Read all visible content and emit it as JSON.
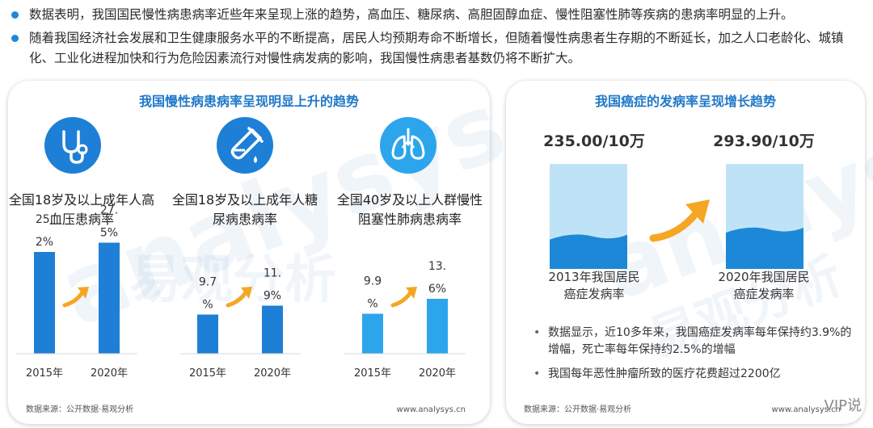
{
  "bullets": [
    "数据表明，我国国民慢性病患病率近些年来呈现上涨的趋势，高血压、糖尿病、高胆固醇血症、慢性阻塞性肺等疾病的患病率明显的上升。",
    "随着我国经济社会发展和卫生健康服务水平的不断提高，居民人均预期寿命不断增长，但随着慢性病患者生存期的不断延长，加之人口老龄化、城镇化、工业化进程加快和行为危险因素流行对慢性病发病的影响，我国慢性病患者基数仍将不断扩大。"
  ],
  "left_panel": {
    "title": "我国慢性病患病率呈现明显上升的趋势",
    "source": "数据来源：公开数据·易观分析",
    "site": "www.analysys.cn"
  },
  "right_panel": {
    "title": "我国癌症的发病率呈现增长趋势",
    "source": "数据来源：公开数据·易观分析",
    "site": "www.analysys.cn",
    "notes": [
      "数据显示，近10多年来，我国癌症发病率每年保持约3.9%的增幅，死亡率每年保持约2.5%的增幅",
      "我国每年恶性肿瘤所致的医疗花费超过2200亿"
    ]
  },
  "watermark": {
    "left_en": "analysys",
    "left_cn": "易观分析",
    "right_en": "analysys",
    "right_cn": "易观分析"
  },
  "colors": {
    "accent": "#1e78c8",
    "bar_dark": "#1e7fd6",
    "bar_light": "#2ca5ec",
    "arrow": "#f5a623",
    "tank_light": "#bfe3f6",
    "tank_fill": "#1e88d8"
  },
  "icons": [
    "stethoscope-icon",
    "test-tube-icon",
    "lungs-icon",
    "trend-arrow-icon"
  ],
  "vip": "VIP说",
  "chart_data": [
    {
      "type": "bar",
      "title": "全国18岁及以上成年人高血压患病率",
      "categories": [
        "2015年",
        "2020年"
      ],
      "values": [
        25.2,
        27.5
      ],
      "value_labels_lines": [
        [
          "25.",
          "2%"
        ],
        [
          "27.",
          "5%"
        ]
      ]
    },
    {
      "type": "bar",
      "title": "全国18岁及以上成年人糖尿病患病率",
      "categories": [
        "2015年",
        "2020年"
      ],
      "values": [
        9.7,
        11.9
      ],
      "value_labels_lines": [
        [
          "9.7",
          "%"
        ],
        [
          "11.",
          "9%"
        ]
      ]
    },
    {
      "type": "bar",
      "title": "全国40岁及以上人群慢性阻塞性肺病患病率",
      "categories": [
        "2015年",
        "2020年"
      ],
      "values": [
        9.9,
        13.6
      ],
      "value_labels_lines": [
        [
          "9.9",
          "%"
        ],
        [
          "13.",
          "6%"
        ]
      ]
    },
    {
      "type": "bar",
      "title": "我国癌症的发病率呈现增长趋势",
      "categories": [
        "2013年我国居民癌症发病率",
        "2020年我国居民癌症发病率"
      ],
      "category_lines": [
        [
          "2013年我国居民",
          "癌症发病率"
        ],
        [
          "2020年我国居民",
          "癌症发病率"
        ]
      ],
      "values": [
        235.0,
        293.9
      ],
      "value_labels": [
        "235.00/10万",
        "293.90/10万"
      ]
    }
  ]
}
